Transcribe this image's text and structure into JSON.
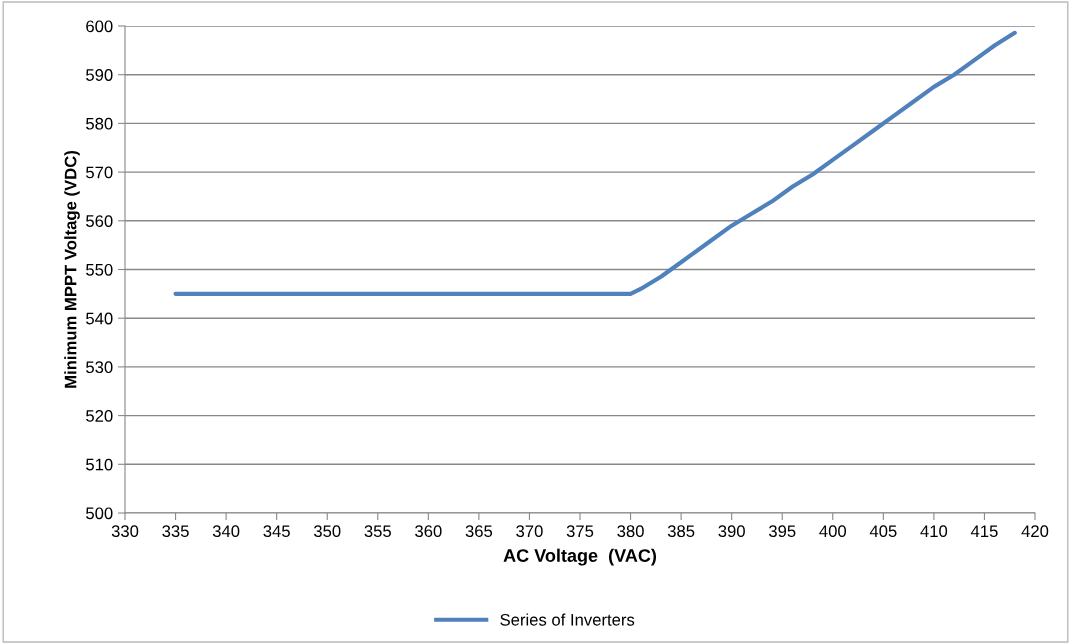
{
  "chart_data": {
    "type": "line",
    "xlabel": "AC Voltage  (VAC)",
    "ylabel": "Minimum MPPT Voltage (VDC)",
    "series": [
      {
        "name": "Series of Inverters",
        "color": "#4f81bd",
        "x": [
          335,
          380,
          381,
          383,
          385,
          386,
          388,
          390,
          392,
          394,
          396,
          398,
          400,
          402,
          404,
          406,
          408,
          410,
          412,
          414,
          416,
          418
        ],
        "values": [
          545,
          545,
          546,
          548.5,
          551.5,
          553,
          556,
          559,
          561.5,
          564,
          567,
          569.5,
          572.5,
          575.5,
          578.5,
          581.5,
          584.5,
          587.5,
          590,
          593,
          596,
          598.6
        ]
      }
    ],
    "xlim": [
      330,
      420
    ],
    "xticks": [
      330,
      335,
      340,
      345,
      350,
      355,
      360,
      365,
      370,
      375,
      380,
      385,
      390,
      395,
      400,
      405,
      410,
      415,
      420
    ],
    "ylim": [
      500,
      600
    ],
    "yticks": [
      500,
      510,
      520,
      530,
      540,
      550,
      560,
      570,
      580,
      590,
      600
    ],
    "grid": "y",
    "legend": "bottom",
    "marker": "none",
    "line_style": "solid"
  }
}
